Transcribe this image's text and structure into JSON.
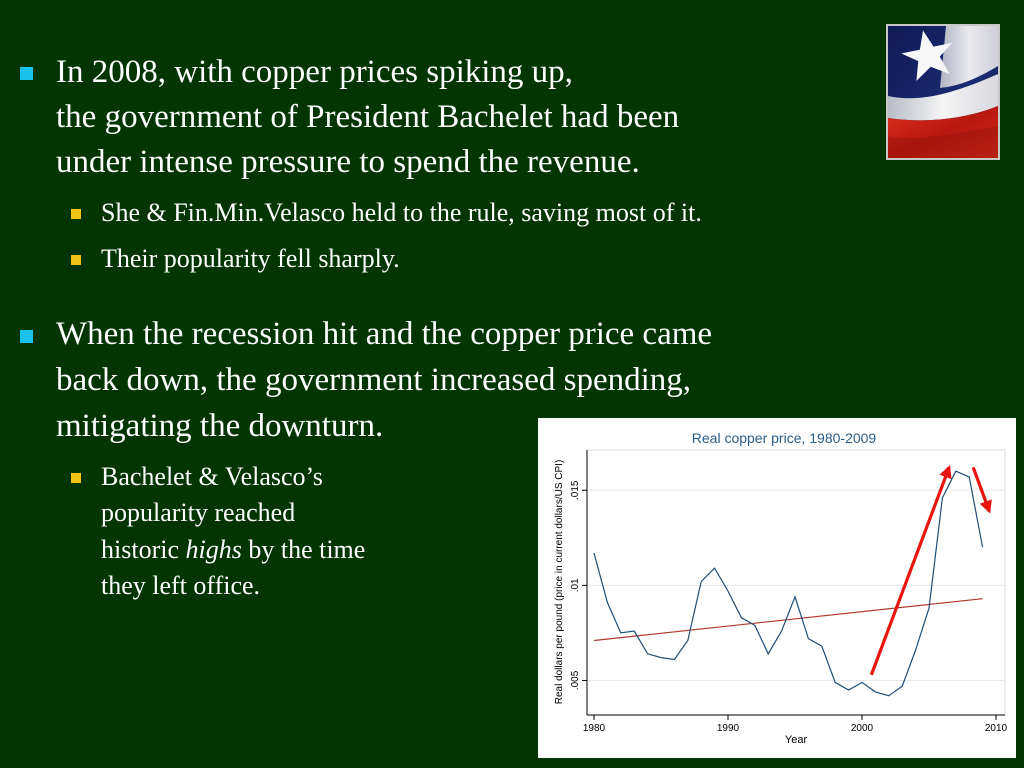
{
  "slide": {
    "b1": {
      "line1": "In 2008, with copper prices spiking up,",
      "line2": "the government of President Bachelet had been",
      "line3": "under intense pressure to spend the revenue."
    },
    "b1_subs": [
      "She & Fin.Min.Velasco held to the rule, saving most of it.",
      "Their popularity  fell sharply."
    ],
    "b2": {
      "line1": "When the recession hit and the copper price came",
      "line2": "back down, the government increased spending,",
      "line3": "mitigating the downturn."
    },
    "b2_sub": {
      "line1": "Bachelet & Velasco’s",
      "line2": "popularity reached",
      "line3_pre": "historic ",
      "line3_em": "highs",
      "line3_post": " by the time",
      "line4": "they left office."
    }
  },
  "colors": {
    "background": "#023502",
    "bullet_l1": "#19c2ea",
    "bullet_l2": "#f0c419",
    "series": "#1f4e79",
    "trend": "#b03a2e",
    "arrow": "#e8140e"
  },
  "icons": {
    "flag": "chile-flag-icon"
  },
  "chart_data": {
    "type": "line",
    "title": "Real copper price, 1980-2009",
    "xlabel": "Year",
    "ylabel": "Real dollars per pound (price in current dollars/US CPI)",
    "xlim": [
      1980,
      2010
    ],
    "ylim": [
      0.0035,
      0.0168
    ],
    "xticks": [
      "1980",
      "1990",
      "2000",
      "2010"
    ],
    "yticks": [
      ".005",
      ".01",
      ".015"
    ],
    "grid": true,
    "x": [
      1980,
      1981,
      1982,
      1983,
      1984,
      1985,
      1986,
      1987,
      1988,
      1989,
      1990,
      1991,
      1992,
      1993,
      1994,
      1995,
      1996,
      1997,
      1998,
      1999,
      2000,
      2001,
      2002,
      2003,
      2004,
      2005,
      2006,
      2007,
      2008,
      2009
    ],
    "series": [
      {
        "values": [
          0.0117,
          0.0091,
          0.0075,
          0.0076,
          0.0064,
          0.0062,
          0.0061,
          0.0071,
          0.0102,
          0.0109,
          0.0097,
          0.0083,
          0.0079,
          0.0064,
          0.0076,
          0.0094,
          0.0072,
          0.0068,
          0.0049,
          0.0045,
          0.0049,
          0.0044,
          0.0042,
          0.0047,
          0.0066,
          0.0088,
          0.0146,
          0.016,
          0.0157,
          0.012
        ]
      }
    ],
    "trend": {
      "x": [
        1980,
        2009
      ],
      "values": [
        0.0071,
        0.0093
      ]
    },
    "annotations": [
      {
        "type": "arrow",
        "from": [
          2000.7,
          0.0053
        ],
        "to": [
          2006.5,
          0.0162
        ]
      },
      {
        "type": "arrow",
        "from": [
          2008.3,
          0.0162
        ],
        "to": [
          2009.5,
          0.0139
        ]
      }
    ]
  }
}
